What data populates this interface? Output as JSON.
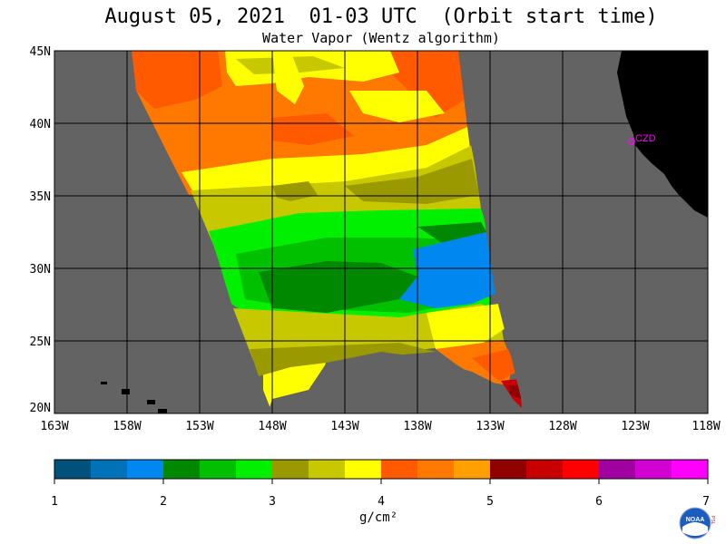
{
  "header": {
    "title": "August 05, 2021  01-03 UTC  (Orbit start time)",
    "subtitle": "Water Vapor (Wentz algorithm)"
  },
  "map": {
    "lat_labels": [
      "45N",
      "40N",
      "35N",
      "30N",
      "25N",
      "20N"
    ],
    "lon_labels": [
      "163W",
      "158W",
      "153W",
      "148W",
      "143W",
      "138W",
      "133W",
      "128W",
      "123W",
      "118W"
    ],
    "station_label": "CZD",
    "colors": {
      "ocean": "#636363",
      "land": "#000000",
      "station": "#ff00ff"
    }
  },
  "colorbar": {
    "labels": [
      "1",
      "2",
      "3",
      "4",
      "5",
      "6",
      "7"
    ],
    "colors": [
      "#00527a",
      "#0072b8",
      "#0088f0",
      "#008800",
      "#00c000",
      "#00f000",
      "#9a9a00",
      "#c8c800",
      "#ffff00",
      "#ff5a00",
      "#ff7800",
      "#ffa000",
      "#900000",
      "#c80000",
      "#ff0000",
      "#a000a0",
      "#d200d2",
      "#ff00ff"
    ],
    "units": "g/cm²"
  },
  "logo": {
    "text": "NOAA",
    "side_text": "PSL"
  }
}
